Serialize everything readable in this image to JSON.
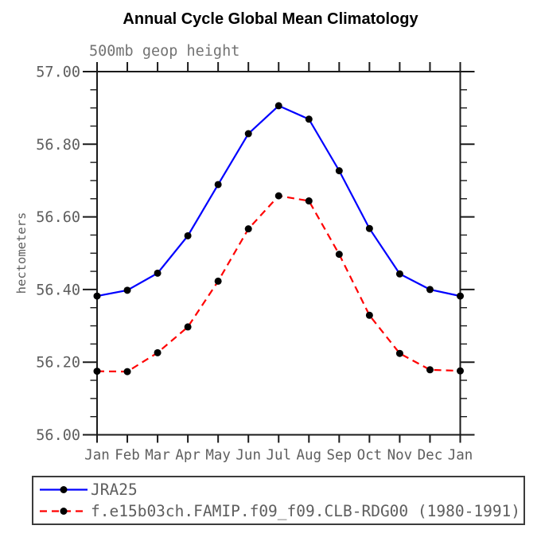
{
  "header": {
    "title": "Annual Cycle Global Mean Climatology",
    "subtitle": "500mb geop height"
  },
  "axes": {
    "ylabel": "hectometers"
  },
  "legend": {
    "entries": [
      {
        "label": "JRA25",
        "color": "#0000ff",
        "dasharray": "none"
      },
      {
        "label": "f.e15b03ch.FAMIP.f09_f09.CLB-RDG00 (1980-1991)",
        "color": "#ff0000",
        "dasharray": "9 6"
      }
    ]
  },
  "chart_data": {
    "type": "line",
    "title": "Annual Cycle Global Mean Climatology",
    "subtitle": "500mb geop height",
    "xlabel": "",
    "ylabel": "hectometers",
    "categories": [
      "Jan",
      "Feb",
      "Mar",
      "Apr",
      "May",
      "Jun",
      "Jul",
      "Aug",
      "Sep",
      "Oct",
      "Nov",
      "Dec",
      "Jan"
    ],
    "series": [
      {
        "name": "JRA25",
        "color": "#0000ff",
        "style": "solid",
        "marker": "filled-circle",
        "marker_color": "#000000",
        "values": [
          56.382,
          56.398,
          56.445,
          56.548,
          56.689,
          56.829,
          56.906,
          56.869,
          56.727,
          56.568,
          56.443,
          56.4,
          56.382
        ]
      },
      {
        "name": "f.e15b03ch.FAMIP.f09_f09.CLB-RDG00 (1980-1991)",
        "color": "#ff0000",
        "style": "dashed",
        "marker": "filled-circle",
        "marker_color": "#000000",
        "values": [
          56.175,
          56.174,
          56.226,
          56.297,
          56.423,
          56.567,
          56.658,
          56.644,
          56.497,
          56.329,
          56.224,
          56.179,
          56.176
        ]
      }
    ],
    "ylim": [
      56.0,
      57.0
    ],
    "ytick_labels": [
      "57.00",
      "56.80",
      "56.60",
      "56.40",
      "56.20",
      "56.00"
    ],
    "ytick_step": 0.2,
    "yminor_step": 0.05,
    "grid": false,
    "legend_position": "bottom-box",
    "axis_color": "#1a1a1a",
    "tick_label_color": "#5e5e5e"
  }
}
